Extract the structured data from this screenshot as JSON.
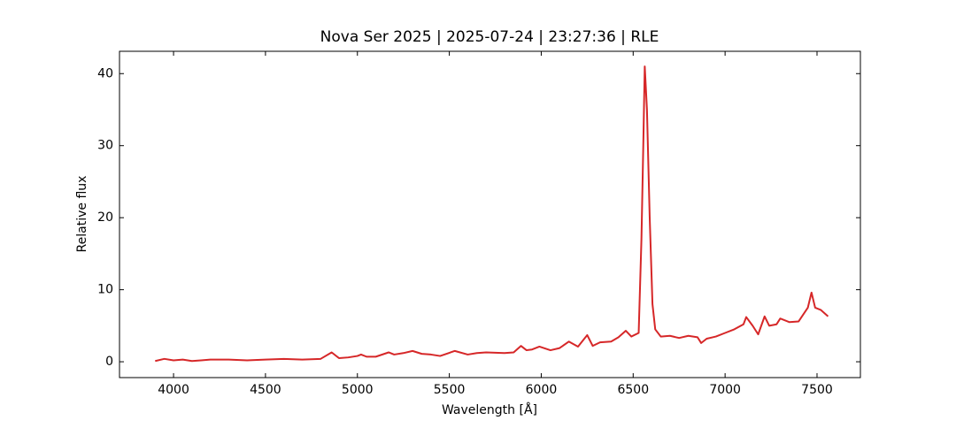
{
  "chart_data": {
    "type": "line",
    "title": "Nova Ser 2025 | 2025-07-24 | 23:27:36 | RLE",
    "x_label": "Wavelength [Å]",
    "y_label": "Relative flux",
    "x": [
      3900,
      3950,
      4000,
      4050,
      4100,
      4150,
      4200,
      4300,
      4400,
      4500,
      4600,
      4700,
      4800,
      4860,
      4900,
      4950,
      5000,
      5020,
      5050,
      5100,
      5170,
      5200,
      5250,
      5300,
      5350,
      5400,
      5450,
      5530,
      5600,
      5650,
      5700,
      5800,
      5850,
      5890,
      5920,
      5950,
      5990,
      6050,
      6100,
      6150,
      6200,
      6250,
      6280,
      6320,
      6380,
      6420,
      6460,
      6490,
      6530,
      6545,
      6555,
      6563,
      6575,
      6590,
      6605,
      6620,
      6650,
      6700,
      6750,
      6800,
      6850,
      6870,
      6900,
      6950,
      7000,
      7050,
      7100,
      7115,
      7150,
      7180,
      7215,
      7240,
      7280,
      7300,
      7350,
      7400,
      7450,
      7470,
      7490,
      7520,
      7560
    ],
    "series": [
      {
        "name": "Nova Ser 2025",
        "color": "#d62728",
        "values": [
          0.1,
          0.4,
          0.2,
          0.3,
          0.1,
          0.2,
          0.3,
          0.3,
          0.2,
          0.3,
          0.4,
          0.3,
          0.4,
          1.3,
          0.5,
          0.6,
          0.8,
          1.0,
          0.7,
          0.7,
          1.3,
          1.0,
          1.2,
          1.5,
          1.1,
          1.0,
          0.8,
          1.5,
          1.0,
          1.2,
          1.3,
          1.2,
          1.3,
          2.2,
          1.6,
          1.7,
          2.1,
          1.6,
          1.9,
          2.8,
          2.1,
          3.7,
          2.2,
          2.7,
          2.8,
          3.4,
          4.3,
          3.5,
          4.0,
          17,
          30,
          41,
          35,
          20,
          8,
          4.5,
          3.5,
          3.6,
          3.3,
          3.6,
          3.4,
          2.6,
          3.2,
          3.5,
          4.0,
          4.5,
          5.2,
          6.2,
          5.0,
          3.8,
          6.3,
          5.0,
          5.2,
          6.0,
          5.5,
          5.6,
          7.5,
          9.6,
          7.5,
          7.2,
          6.3
        ]
      }
    ],
    "xlim": [
      3706,
      7736
    ],
    "ylim": [
      -2.2,
      43.1
    ],
    "xticks": [
      4000,
      4500,
      5000,
      5500,
      6000,
      6500,
      7000,
      7500
    ],
    "yticks": [
      0,
      10,
      20,
      30,
      40
    ]
  }
}
